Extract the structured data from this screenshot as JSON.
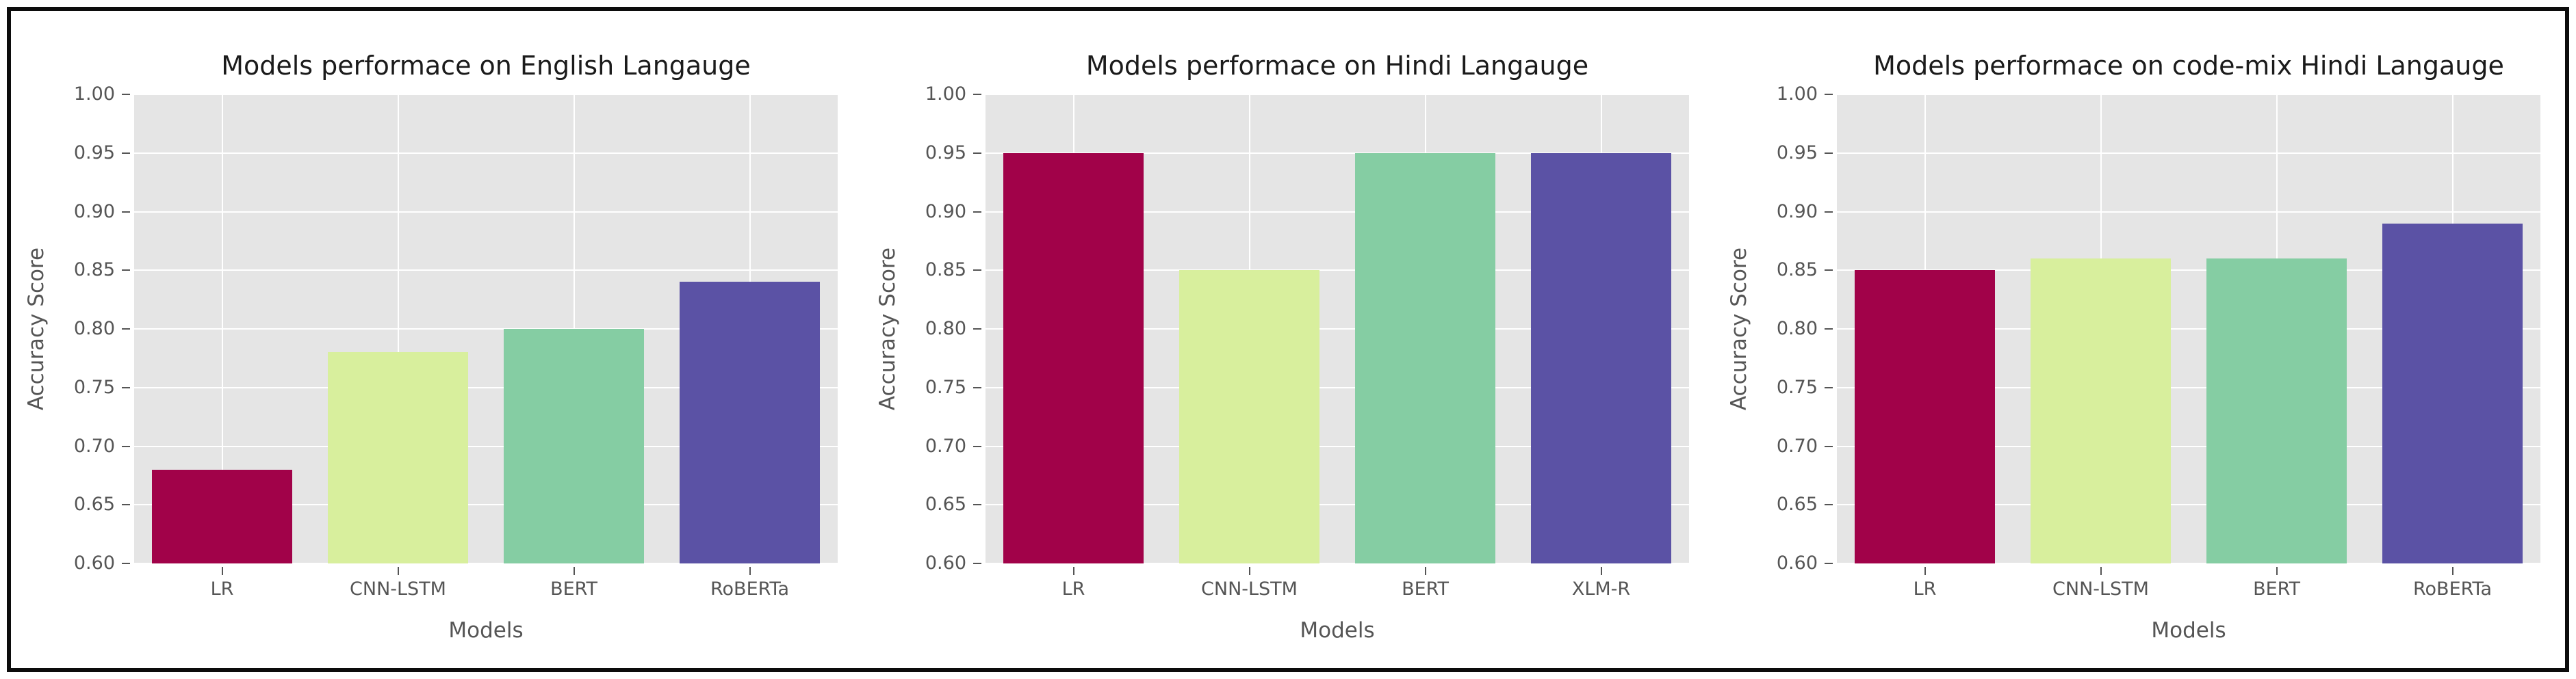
{
  "figure": {
    "frame_border_color": "#0c0c0c",
    "background_color": "#ffffff"
  },
  "style": {
    "plot_background": "#e5e5e5",
    "grid_color": "#ffffff",
    "tick_text_color": "#555555",
    "title_color": "#1b1b1b",
    "bar_colors": [
      "#a10249",
      "#d8ef9d",
      "#85cda3",
      "#5b52a5"
    ]
  },
  "chart_data": [
    {
      "type": "bar",
      "title": "Models performace on English Langauge",
      "xlabel": "Models",
      "ylabel": "Accuracy Score",
      "categories": [
        "LR",
        "CNN-LSTM",
        "BERT",
        "RoBERTa"
      ],
      "values": [
        0.68,
        0.78,
        0.8,
        0.84
      ],
      "ylim": [
        0.6,
        1.0
      ],
      "yticks": [
        0.6,
        0.65,
        0.7,
        0.75,
        0.8,
        0.85,
        0.9,
        0.95,
        1.0
      ],
      "grid": "on",
      "legend": "none"
    },
    {
      "type": "bar",
      "title": "Models performace on Hindi Langauge",
      "xlabel": "Models",
      "ylabel": "Accuracy Score",
      "categories": [
        "LR",
        "CNN-LSTM",
        "BERT",
        "XLM-R"
      ],
      "values": [
        0.95,
        0.85,
        0.95,
        0.95
      ],
      "ylim": [
        0.6,
        1.0
      ],
      "yticks": [
        0.6,
        0.65,
        0.7,
        0.75,
        0.8,
        0.85,
        0.9,
        0.95,
        1.0
      ],
      "grid": "on",
      "legend": "none"
    },
    {
      "type": "bar",
      "title": "Models performace on code-mix Hindi Langauge",
      "xlabel": "Models",
      "ylabel": "Accuracy Score",
      "categories": [
        "LR",
        "CNN-LSTM",
        "BERT",
        "RoBERTa"
      ],
      "values": [
        0.85,
        0.86,
        0.86,
        0.89
      ],
      "ylim": [
        0.6,
        1.0
      ],
      "yticks": [
        0.6,
        0.65,
        0.7,
        0.75,
        0.8,
        0.85,
        0.9,
        0.95,
        1.0
      ],
      "grid": "on",
      "legend": "none"
    }
  ]
}
